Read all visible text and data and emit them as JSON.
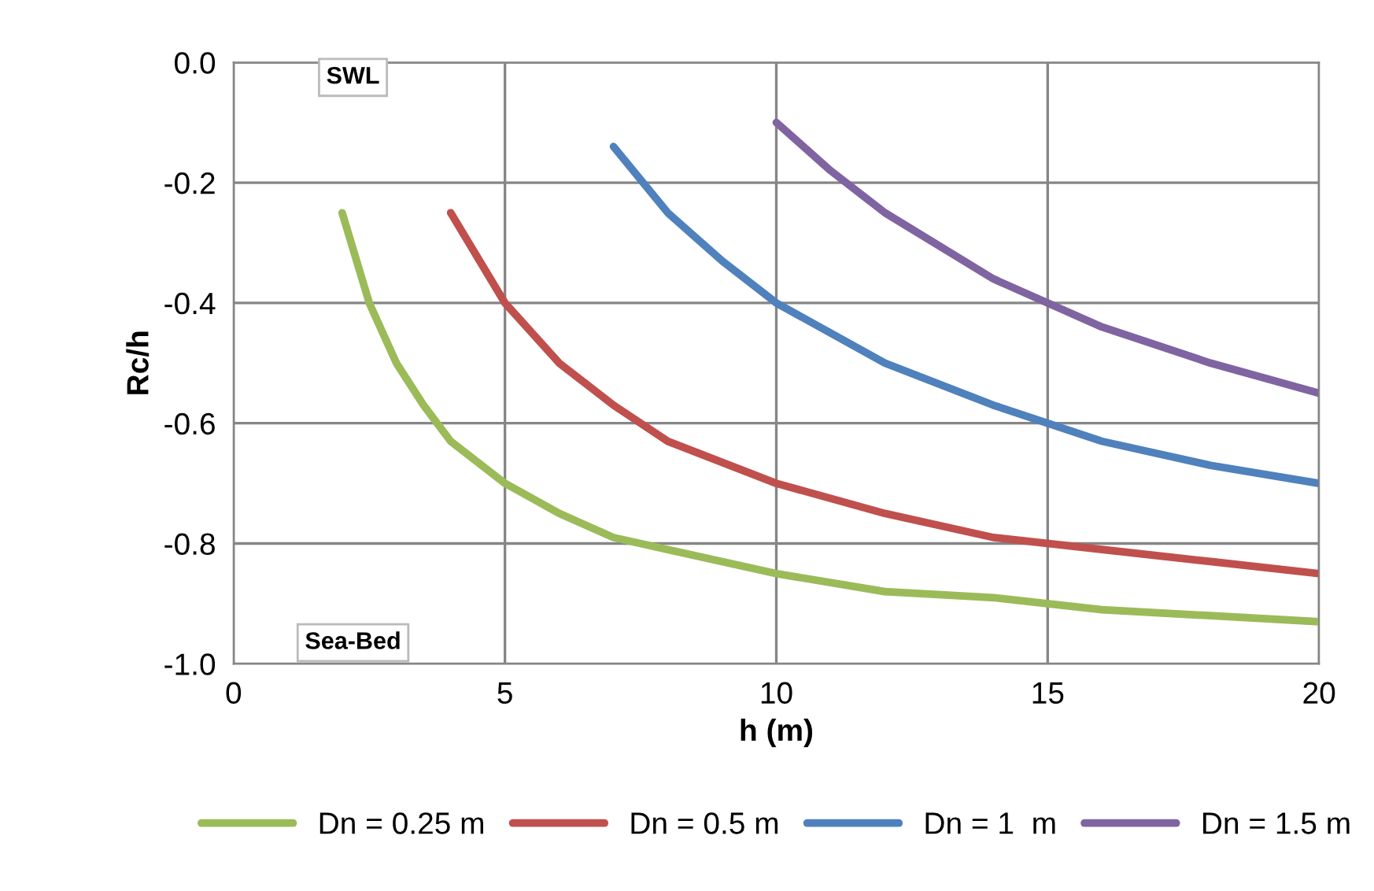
{
  "chart_data": {
    "type": "line",
    "xlabel": "h (m)",
    "ylabel": "Rc/h",
    "xlim": [
      0,
      20
    ],
    "xticks": [
      0,
      5,
      10,
      15,
      20
    ],
    "ylim": [
      -1.0,
      0.0
    ],
    "yticks": [
      {
        "value": -1.0,
        "label": "-1.0"
      },
      {
        "value": -0.8,
        "label": "-0.8"
      },
      {
        "value": -0.6,
        "label": "-0.6"
      },
      {
        "value": -0.4,
        "label": "-0.4"
      },
      {
        "value": -0.2,
        "label": "-0.2"
      },
      {
        "value": 0.0,
        "label": "0.0"
      }
    ],
    "grid": true,
    "legend": "bottom",
    "marker": "none",
    "line_style": "solid",
    "series": [
      {
        "name": "Dn = 0.25 m",
        "color": "#9bbb59",
        "x": [
          2,
          2.5,
          3,
          3.5,
          4,
          5,
          6,
          7,
          8,
          10,
          12,
          14,
          16,
          18,
          20
        ],
        "values": [
          -0.25,
          -0.4,
          -0.5,
          -0.57,
          -0.63,
          -0.7,
          -0.75,
          -0.79,
          -0.81,
          -0.85,
          -0.88,
          -0.89,
          -0.91,
          -0.92,
          -0.93
        ]
      },
      {
        "name": "Dn = 0.5 m",
        "color": "#c0504d",
        "x": [
          4,
          5,
          6,
          7,
          8,
          10,
          12,
          14,
          16,
          18,
          20
        ],
        "values": [
          -0.25,
          -0.4,
          -0.5,
          -0.57,
          -0.63,
          -0.7,
          -0.75,
          -0.79,
          -0.81,
          -0.83,
          -0.85
        ]
      },
      {
        "name": "Dn = 1  m",
        "color": "#4f81bd",
        "x": [
          7,
          8,
          9,
          10,
          12,
          14,
          16,
          18,
          20
        ],
        "values": [
          -0.14,
          -0.25,
          -0.33,
          -0.4,
          -0.5,
          -0.57,
          -0.63,
          -0.67,
          -0.7
        ]
      },
      {
        "name": "Dn = 1.5 m",
        "color": "#8064a2",
        "x": [
          10,
          11,
          12,
          14,
          16,
          18,
          20
        ],
        "values": [
          -0.1,
          -0.18,
          -0.25,
          -0.36,
          -0.44,
          -0.5,
          -0.55
        ]
      }
    ],
    "annotations": [
      "SWL",
      "Sea-Bed"
    ]
  }
}
